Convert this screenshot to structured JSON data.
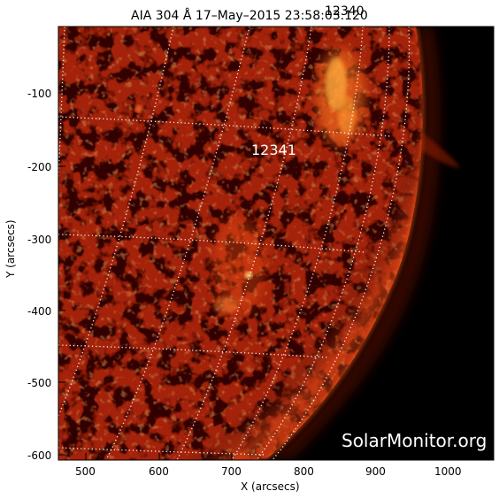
{
  "title": "AIA 304 Å 17–May–2015 23:58:03.120",
  "title_overlap": "12340",
  "xlabel": "X (arcsecs)",
  "ylabel": "Y (arcsecs)",
  "x_ticks": [
    "500",
    "600",
    "700",
    "800",
    "900",
    "1000"
  ],
  "y_ticks": [
    "-100",
    "-200",
    "-300",
    "-400",
    "-500",
    "-600"
  ],
  "active_region": "12341",
  "watermark": "SolarMonitor.org",
  "colors": {
    "sky": "#000000",
    "disk_base": "#4a0700",
    "disk_bright": "#d03010",
    "hot": "#ffd060",
    "grid": "#ffffff"
  }
}
